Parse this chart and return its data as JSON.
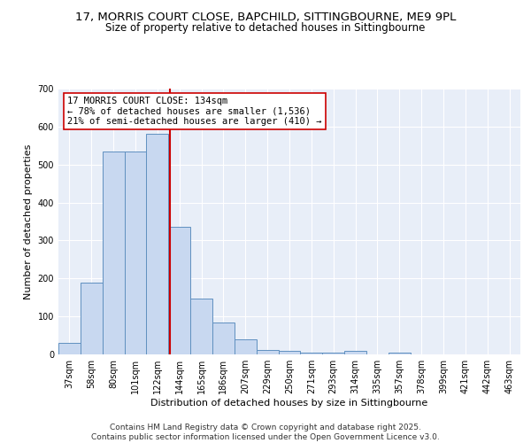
{
  "title_line1": "17, MORRIS COURT CLOSE, BAPCHILD, SITTINGBOURNE, ME9 9PL",
  "title_line2": "Size of property relative to detached houses in Sittingbourne",
  "xlabel": "Distribution of detached houses by size in Sittingbourne",
  "ylabel": "Number of detached properties",
  "bar_color": "#c8d8f0",
  "bar_edge_color": "#6090c0",
  "background_color": "#e8eef8",
  "grid_color": "#ffffff",
  "categories": [
    "37sqm",
    "58sqm",
    "80sqm",
    "101sqm",
    "122sqm",
    "144sqm",
    "165sqm",
    "186sqm",
    "207sqm",
    "229sqm",
    "250sqm",
    "271sqm",
    "293sqm",
    "314sqm",
    "335sqm",
    "357sqm",
    "378sqm",
    "399sqm",
    "421sqm",
    "442sqm",
    "463sqm"
  ],
  "values": [
    30,
    190,
    535,
    535,
    580,
    335,
    148,
    85,
    40,
    12,
    10,
    5,
    5,
    10,
    0,
    5,
    0,
    0,
    0,
    0,
    0
  ],
  "vline_x": 4.55,
  "vline_color": "#cc0000",
  "annotation_text": "17 MORRIS COURT CLOSE: 134sqm\n← 78% of detached houses are smaller (1,536)\n21% of semi-detached houses are larger (410) →",
  "annotation_box_color": "#ffffff",
  "annotation_box_edge": "#cc0000",
  "ylim": [
    0,
    700
  ],
  "yticks": [
    0,
    100,
    200,
    300,
    400,
    500,
    600,
    700
  ],
  "footer": "Contains HM Land Registry data © Crown copyright and database right 2025.\nContains public sector information licensed under the Open Government Licence v3.0.",
  "title_fontsize": 9.5,
  "subtitle_fontsize": 8.5,
  "axis_label_fontsize": 8,
  "tick_fontsize": 7,
  "annotation_fontsize": 7.5,
  "footer_fontsize": 6.5
}
